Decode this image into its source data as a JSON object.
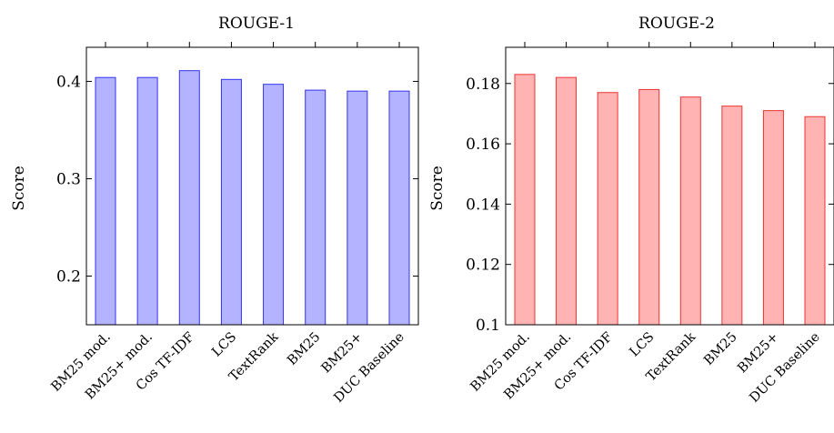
{
  "chart_data": [
    {
      "type": "bar",
      "title": "ROUGE-1",
      "ylabel": "Score",
      "xlabel": "",
      "categories": [
        "BM25 mod.",
        "BM25+ mod.",
        "Cos TF-IDF",
        "LCS",
        "TextRank",
        "BM25",
        "BM25+",
        "DUC Baseline"
      ],
      "values": [
        0.404,
        0.404,
        0.411,
        0.402,
        0.397,
        0.391,
        0.39,
        0.39
      ],
      "ylim": [
        0.15,
        0.435
      ],
      "yticks": [
        0.2,
        0.3,
        0.4
      ],
      "ytick_labels": [
        "0.2",
        "0.3",
        "0.4"
      ],
      "grid": false,
      "colors": {
        "fill": "#b3b3ff",
        "stroke": "#3333ee"
      }
    },
    {
      "type": "bar",
      "title": "ROUGE-2",
      "ylabel": "Score",
      "xlabel": "",
      "categories": [
        "BM25 mod.",
        "BM25+ mod.",
        "Cos TF-IDF",
        "LCS",
        "TextRank",
        "BM25",
        "BM25+",
        "DUC Baseline"
      ],
      "values": [
        0.183,
        0.182,
        0.177,
        0.178,
        0.1755,
        0.1725,
        0.171,
        0.169
      ],
      "ylim": [
        0.1,
        0.192
      ],
      "yticks": [
        0.1,
        0.12,
        0.14,
        0.16,
        0.18
      ],
      "ytick_labels": [
        "0.1",
        "0.12",
        "0.14",
        "0.16",
        "0.18"
      ],
      "grid": false,
      "colors": {
        "fill": "#ffb3b3",
        "stroke": "#ee3333"
      }
    }
  ]
}
